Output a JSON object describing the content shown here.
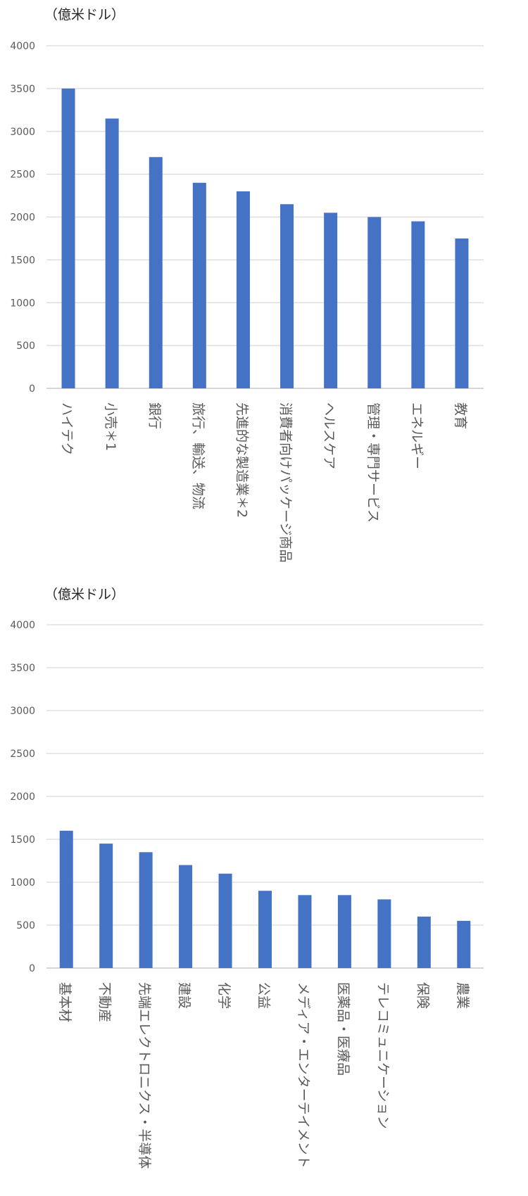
{
  "chart_data": [
    {
      "type": "bar",
      "unit_label": "（億米ドル）",
      "ylim": [
        0,
        4000
      ],
      "yticks": [
        0,
        500,
        1000,
        1500,
        2000,
        2500,
        3000,
        3500,
        4000
      ],
      "grid": true,
      "color": "#4472c4",
      "categories": [
        "ハイテク",
        "小売＊1",
        "銀行",
        "旅行、輸送、物流",
        "先進的な製造業＊2",
        "消費者向けパッケージ商品",
        "ヘルスケア",
        "管理・専門サービス",
        "エネルギー",
        "教育"
      ],
      "values": [
        3500,
        3150,
        2700,
        2400,
        2300,
        2150,
        2050,
        2000,
        1950,
        1750
      ]
    },
    {
      "type": "bar",
      "unit_label": "（億米ドル）",
      "ylim": [
        0,
        4000
      ],
      "yticks": [
        0,
        500,
        1000,
        1500,
        2000,
        2500,
        3000,
        3500,
        4000
      ],
      "grid": true,
      "color": "#4472c4",
      "categories": [
        "基本材",
        "不動産",
        "先端エレクトロニクス・半導体",
        "建設",
        "化学",
        "公益",
        "メディア・エンターテイメント",
        "医薬品・医療品",
        "テレコミュニケーション",
        "保険",
        "農業"
      ],
      "values": [
        1600,
        1450,
        1350,
        1200,
        1100,
        900,
        850,
        850,
        800,
        600,
        550
      ]
    }
  ]
}
